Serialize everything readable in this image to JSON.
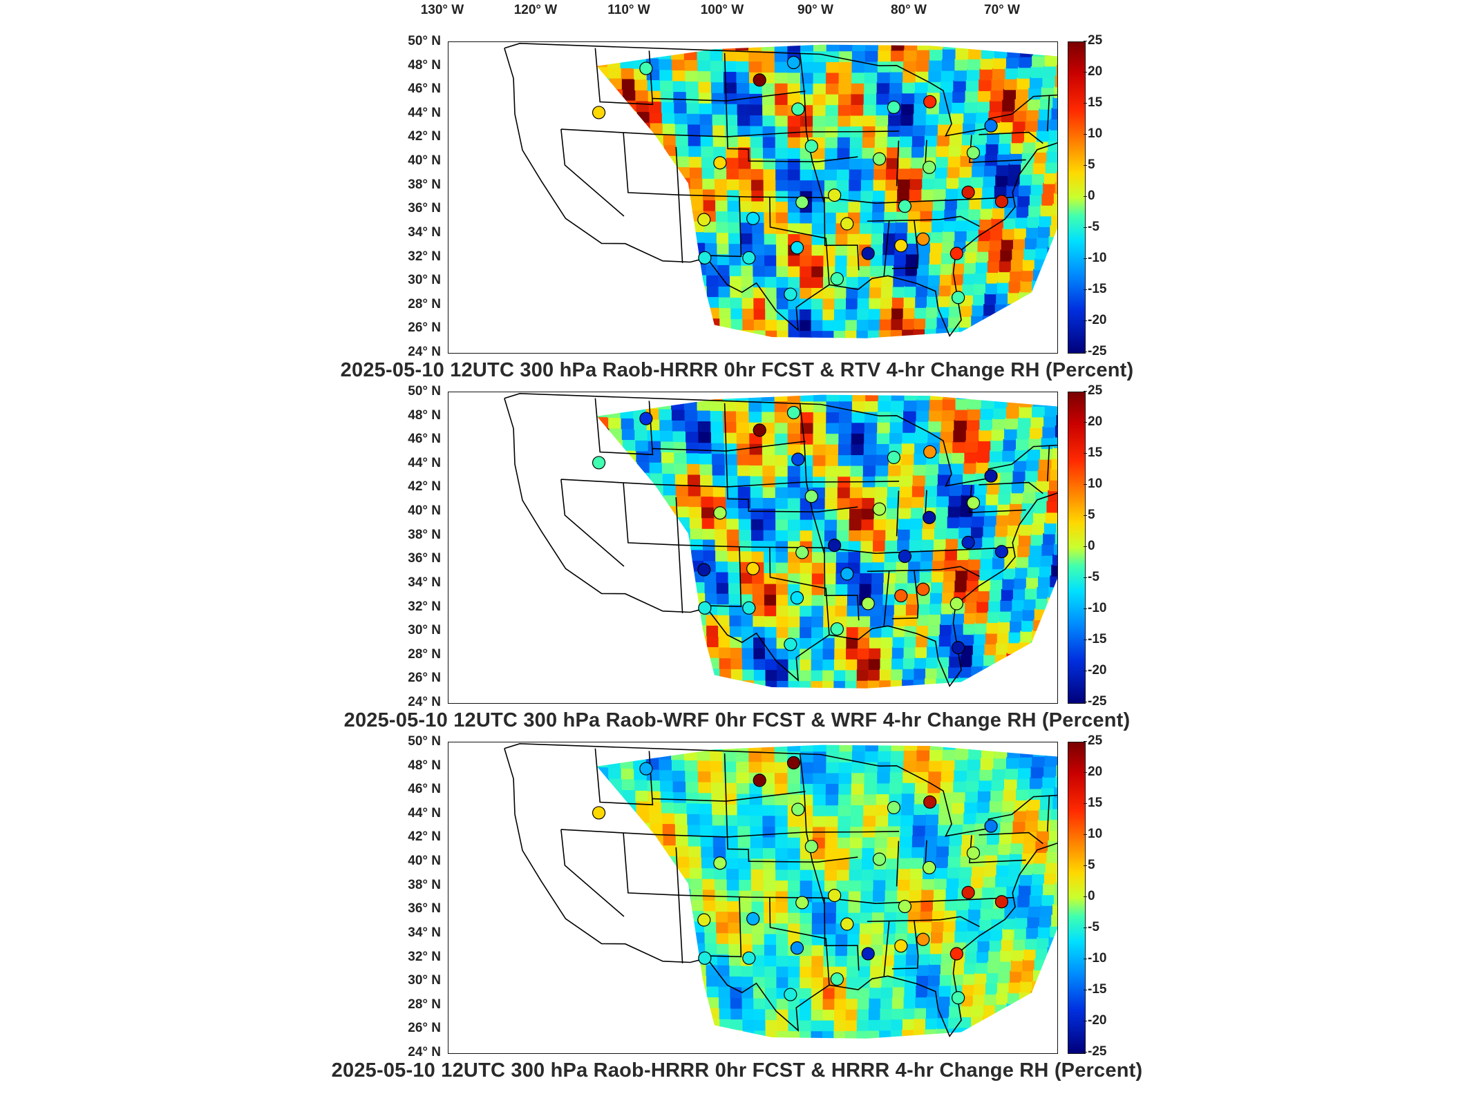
{
  "top_longitudes": [
    "130° W",
    "120° W",
    "110° W",
    "100° W",
    "90° W",
    "80° W",
    "70° W"
  ],
  "latitudes": [
    "50° N",
    "48° N",
    "46° N",
    "44° N",
    "42° N",
    "40° N",
    "38° N",
    "36° N",
    "34° N",
    "32° N",
    "30° N",
    "28° N",
    "26° N",
    "24° N"
  ],
  "colorbar": {
    "ticks": [
      "25",
      "20",
      "15",
      "10",
      "5",
      "0",
      "-5",
      "-10",
      "-15",
      "-20",
      "-25"
    ],
    "range": [
      -25,
      25
    ],
    "colormap": [
      "#7a0000",
      "#ff2a00",
      "#ffd800",
      "#40ffb0",
      "#0090ff",
      "#00007a"
    ]
  },
  "panels": [
    {
      "title": "2025-05-10 12UTC 300 hPa Raob-HRRR 0hr FCST & RTV 4-hr Change RH (Percent)"
    },
    {
      "title": "2025-05-10 12UTC 300 hPa Raob-WRF 0hr FCST & WRF 4-hr Change RH (Percent)"
    },
    {
      "title": "2025-05-10 12UTC 300 hPa Raob-HRRR 0hr FCST & HRRR 4-hr Change RH (Percent)"
    }
  ],
  "stations": [
    {
      "lon": -97.6,
      "lat": 48.3
    },
    {
      "lon": -111.4,
      "lat": 47.5
    },
    {
      "lon": -100.8,
      "lat": 46.8
    },
    {
      "lon": -97.2,
      "lat": 44.4
    },
    {
      "lon": -88.1,
      "lat": 44.5
    },
    {
      "lon": -84.7,
      "lat": 44.9
    },
    {
      "lon": -78.7,
      "lat": 42.7
    },
    {
      "lon": -116.2,
      "lat": 43.6
    },
    {
      "lon": -95.9,
      "lat": 41.3
    },
    {
      "lon": -89.3,
      "lat": 40.2
    },
    {
      "lon": -84.4,
      "lat": 39.4
    },
    {
      "lon": -80.2,
      "lat": 40.5
    },
    {
      "lon": -104.8,
      "lat": 39.8
    },
    {
      "lon": -93.6,
      "lat": 37.2
    },
    {
      "lon": -96.8,
      "lat": 36.6
    },
    {
      "lon": -80.4,
      "lat": 37.2
    },
    {
      "lon": -77.0,
      "lat": 36.3
    },
    {
      "lon": -86.6,
      "lat": 36.2
    },
    {
      "lon": -106.6,
      "lat": 35.0
    },
    {
      "lon": -101.7,
      "lat": 35.2
    },
    {
      "lon": -92.3,
      "lat": 34.8
    },
    {
      "lon": -84.6,
      "lat": 33.4
    },
    {
      "lon": -86.8,
      "lat": 32.9
    },
    {
      "lon": -90.1,
      "lat": 32.3
    },
    {
      "lon": -81.1,
      "lat": 32.1
    },
    {
      "lon": -97.3,
      "lat": 32.8
    },
    {
      "lon": -102.2,
      "lat": 31.9
    },
    {
      "lon": -106.7,
      "lat": 31.8
    },
    {
      "lon": -98.0,
      "lat": 28.9
    },
    {
      "lon": -93.2,
      "lat": 30.2
    },
    {
      "lon": -80.6,
      "lat": 28.4
    }
  ],
  "station_values": [
    [
      -8,
      0,
      25,
      0,
      0,
      18,
      -12,
      8,
      0,
      2,
      2,
      2,
      8,
      6,
      2,
      20,
      20,
      0,
      6,
      -5,
      6,
      12,
      8,
      -22,
      18,
      -5,
      -3,
      -3,
      -3,
      0,
      0
    ],
    [
      0,
      -18,
      25,
      -16,
      0,
      12,
      -22,
      0,
      2,
      3,
      -22,
      3,
      3,
      -22,
      2,
      -20,
      -20,
      -20,
      -22,
      8,
      -8,
      15,
      15,
      3,
      3,
      -5,
      -3,
      -3,
      -3,
      0,
      -22
    ],
    [
      25,
      -8,
      25,
      2,
      2,
      22,
      -12,
      8,
      2,
      2,
      3,
      3,
      3,
      6,
      3,
      20,
      20,
      3,
      6,
      -8,
      6,
      12,
      8,
      -20,
      18,
      -10,
      -3,
      -3,
      -3,
      0,
      0
    ]
  ]
}
